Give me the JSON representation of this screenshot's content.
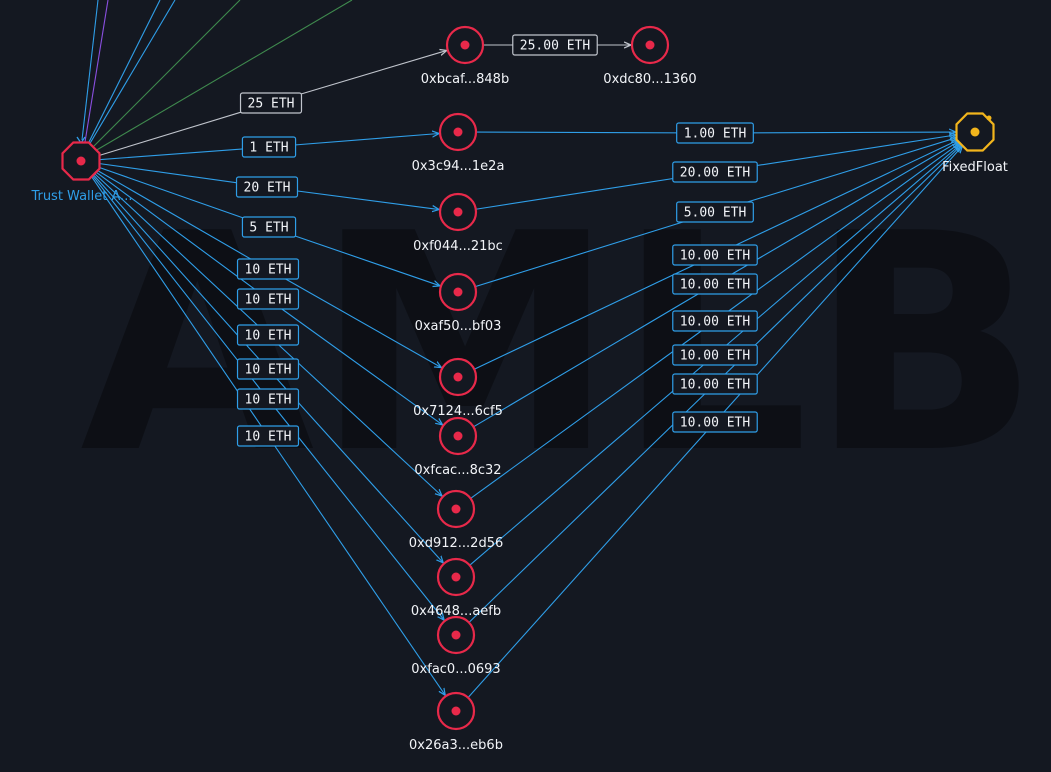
{
  "watermark": "AMLB",
  "colors": {
    "background": "#141821",
    "edge_blue": "#2f9ee8",
    "edge_gray": "#c0c4cc",
    "edge_green": "#3f8a4e",
    "edge_purple": "#8a4fe0",
    "address_node": "#e8294a",
    "exchange_node": "#f2b51c",
    "source_label": "#2f9ee8"
  },
  "nodes": [
    {
      "id": "src",
      "label": "Trust Wallet A...",
      "kind": "wallet-source"
    },
    {
      "id": "bcaf",
      "label": "0xbcaf...848b",
      "kind": "address"
    },
    {
      "id": "dc80",
      "label": "0xdc80...1360",
      "kind": "address"
    },
    {
      "id": "3c94",
      "label": "0x3c94...1e2a",
      "kind": "address"
    },
    {
      "id": "f044",
      "label": "0xf044...21bc",
      "kind": "address"
    },
    {
      "id": "af50",
      "label": "0xaf50...bf03",
      "kind": "address"
    },
    {
      "id": "7124",
      "label": "0x7124...6cf5",
      "kind": "address"
    },
    {
      "id": "fcac",
      "label": "0xfcac...8c32",
      "kind": "address"
    },
    {
      "id": "d912",
      "label": "0xd912...2d56",
      "kind": "address"
    },
    {
      "id": "4648",
      "label": "0x4648...aefb",
      "kind": "address"
    },
    {
      "id": "fac0",
      "label": "0xfac0...0693",
      "kind": "address"
    },
    {
      "id": "26a3",
      "label": "0x26a3...eb6b",
      "kind": "address"
    },
    {
      "id": "ff",
      "label": "FixedFloat",
      "kind": "exchange"
    }
  ],
  "edges": [
    {
      "from": "src",
      "to": "bcaf",
      "amount": "25 ETH",
      "color": "gray"
    },
    {
      "from": "bcaf",
      "to": "dc80",
      "amount": "25.00 ETH",
      "color": "gray"
    },
    {
      "from": "src",
      "to": "3c94",
      "amount": "1 ETH",
      "color": "blue"
    },
    {
      "from": "src",
      "to": "f044",
      "amount": "20 ETH",
      "color": "blue"
    },
    {
      "from": "src",
      "to": "af50",
      "amount": "5 ETH",
      "color": "blue"
    },
    {
      "from": "src",
      "to": "7124",
      "amount": "10 ETH",
      "color": "blue"
    },
    {
      "from": "src",
      "to": "fcac",
      "amount": "10 ETH",
      "color": "blue"
    },
    {
      "from": "src",
      "to": "d912",
      "amount": "10 ETH",
      "color": "blue"
    },
    {
      "from": "src",
      "to": "4648",
      "amount": "10 ETH",
      "color": "blue"
    },
    {
      "from": "src",
      "to": "fac0",
      "amount": "10 ETH",
      "color": "blue"
    },
    {
      "from": "src",
      "to": "26a3",
      "amount": "10 ETH",
      "color": "blue"
    },
    {
      "from": "3c94",
      "to": "ff",
      "amount": "1.00 ETH",
      "color": "blue"
    },
    {
      "from": "f044",
      "to": "ff",
      "amount": "20.00 ETH",
      "color": "blue"
    },
    {
      "from": "af50",
      "to": "ff",
      "amount": "5.00 ETH",
      "color": "blue"
    },
    {
      "from": "7124",
      "to": "ff",
      "amount": "10.00 ETH",
      "color": "blue"
    },
    {
      "from": "fcac",
      "to": "ff",
      "amount": "10.00 ETH",
      "color": "blue"
    },
    {
      "from": "d912",
      "to": "ff",
      "amount": "10.00 ETH",
      "color": "blue"
    },
    {
      "from": "4648",
      "to": "ff",
      "amount": "10.00 ETH",
      "color": "blue"
    },
    {
      "from": "fac0",
      "to": "ff",
      "amount": "10.00 ETH",
      "color": "blue"
    },
    {
      "from": "26a3",
      "to": "ff",
      "amount": "10.00 ETH",
      "color": "blue"
    }
  ]
}
